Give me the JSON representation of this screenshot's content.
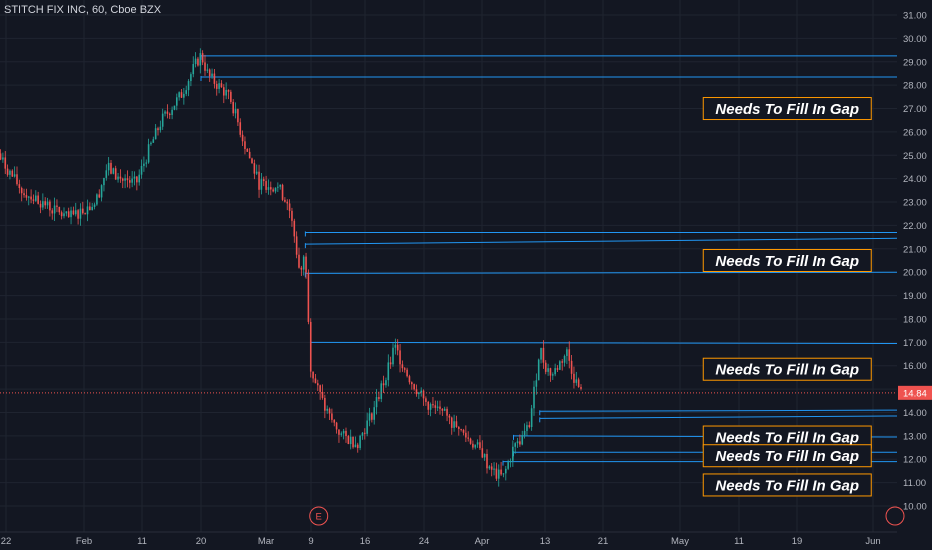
{
  "header": {
    "title": "STITCH FIX INC, 60, Cboe BZX"
  },
  "colors": {
    "background": "#131722",
    "grid": "#1f2430",
    "axis_text": "#b2b5be",
    "up": "#26a69a",
    "down": "#ef5350",
    "gap_line": "#2196f3",
    "annotation_border": "#ff9800",
    "annotation_text": "#ffffff",
    "price_label_bg": "#ef5350",
    "earnings_marker": "#ef5350"
  },
  "chart_data": {
    "type": "candlestick",
    "ylim": [
      9.5,
      31.5
    ],
    "y_ticks": [
      "10.00",
      "11.00",
      "12.00",
      "13.00",
      "14.00",
      "15.00",
      "16.00",
      "17.00",
      "18.00",
      "19.00",
      "20.00",
      "21.00",
      "22.00",
      "23.00",
      "24.00",
      "25.00",
      "26.00",
      "27.00",
      "28.00",
      "29.00",
      "30.00",
      "31.00"
    ],
    "x_ticks": [
      "22",
      "Feb",
      "11",
      "20",
      "Mar",
      "9",
      "16",
      "24",
      "Apr",
      "13",
      "21",
      "May",
      "11",
      "19",
      "Jun"
    ],
    "x_range": [
      "Jan 21",
      "Jun 3"
    ],
    "last_price": "14.84",
    "earnings_marker": {
      "label": "E",
      "date": "Mar 10"
    },
    "series_path": [
      [
        "Jan 21",
        25.0
      ],
      [
        "Jan 24",
        23.5
      ],
      [
        "Jan 27",
        22.9
      ],
      [
        "Jan 30",
        22.3
      ],
      [
        "Feb 3",
        23.0
      ],
      [
        "Feb 5",
        24.5
      ],
      [
        "Feb 7",
        24.0
      ],
      [
        "Feb 10",
        23.8
      ],
      [
        "Feb 12",
        25.2
      ],
      [
        "Feb 14",
        26.5
      ],
      [
        "Feb 17",
        27.6
      ],
      [
        "Feb 19",
        28.8
      ],
      [
        "Feb 20",
        29.3
      ],
      [
        "Feb 21",
        28.4
      ],
      [
        "Feb 24",
        27.5
      ],
      [
        "Feb 26",
        25.5
      ],
      [
        "Feb 28",
        23.8
      ],
      [
        "Mar 3",
        23.7
      ],
      [
        "Mar 5",
        22.9
      ],
      [
        "Mar 6",
        21.6
      ],
      [
        "Mar 7",
        20.0
      ],
      [
        "Mar 8",
        20.8
      ],
      [
        "Mar 9",
        15.8
      ],
      [
        "Mar 11",
        14.0
      ],
      [
        "Mar 13",
        13.0
      ],
      [
        "Mar 15",
        12.7
      ],
      [
        "Mar 17",
        14.0
      ],
      [
        "Mar 19",
        15.8
      ],
      [
        "Mar 20",
        16.8
      ],
      [
        "Mar 22",
        15.5
      ],
      [
        "Mar 24",
        14.5
      ],
      [
        "Mar 26",
        14.0
      ],
      [
        "Mar 28",
        13.5
      ],
      [
        "Mar 30",
        12.9
      ],
      [
        "Apr 1",
        12.3
      ],
      [
        "Apr 2",
        11.8
      ],
      [
        "Apr 3",
        11.5
      ],
      [
        "Apr 5",
        11.2
      ],
      [
        "Apr 7",
        12.5
      ],
      [
        "Apr 9",
        13.0
      ],
      [
        "Apr 10",
        13.5
      ],
      [
        "Apr 11",
        15.0
      ],
      [
        "Apr 12",
        16.8
      ],
      [
        "Apr 13",
        16.0
      ],
      [
        "Apr 14",
        15.6
      ],
      [
        "Apr 16",
        16.6
      ],
      [
        "Apr 17",
        15.5
      ],
      [
        "Apr 18",
        14.84
      ]
    ],
    "gap_lines": [
      {
        "price": 29.25,
        "from": "Feb 20"
      },
      {
        "price": 28.35,
        "from": "Feb 20"
      },
      {
        "price": 21.7,
        "from": "Mar 8"
      },
      {
        "price": 21.2,
        "to_price": 21.45,
        "from": "Mar 8"
      },
      {
        "price": 19.95,
        "to_price": 20.0,
        "from": "Mar 8"
      },
      {
        "price": 17.0,
        "to_price": 16.95,
        "from": "Mar 9"
      },
      {
        "price": 14.05,
        "to_price": 14.1,
        "from": "Apr 12"
      },
      {
        "price": 13.75,
        "to_price": 13.85,
        "from": "Apr 12"
      },
      {
        "price": 13.0,
        "to_price": 12.95,
        "from": "Apr 7"
      },
      {
        "price": 12.3,
        "from": "Apr 7"
      },
      {
        "price": 11.9,
        "from": "Apr 5"
      }
    ],
    "annotations": [
      {
        "text": "Needs To Fill In Gap",
        "price": 27.0,
        "date": "May 12"
      },
      {
        "text": "Needs To Fill In Gap",
        "price": 20.5,
        "date": "May 12"
      },
      {
        "text": "Needs To Fill In Gap",
        "price": 15.85,
        "date": "May 12"
      },
      {
        "text": "Needs To Fill In Gap",
        "price": 12.95,
        "date": "May 12"
      },
      {
        "text": "Needs To Fill In Gap",
        "price": 12.15,
        "date": "May 12"
      },
      {
        "text": "Needs To Fill In Gap",
        "price": 10.9,
        "date": "May 12"
      }
    ]
  }
}
